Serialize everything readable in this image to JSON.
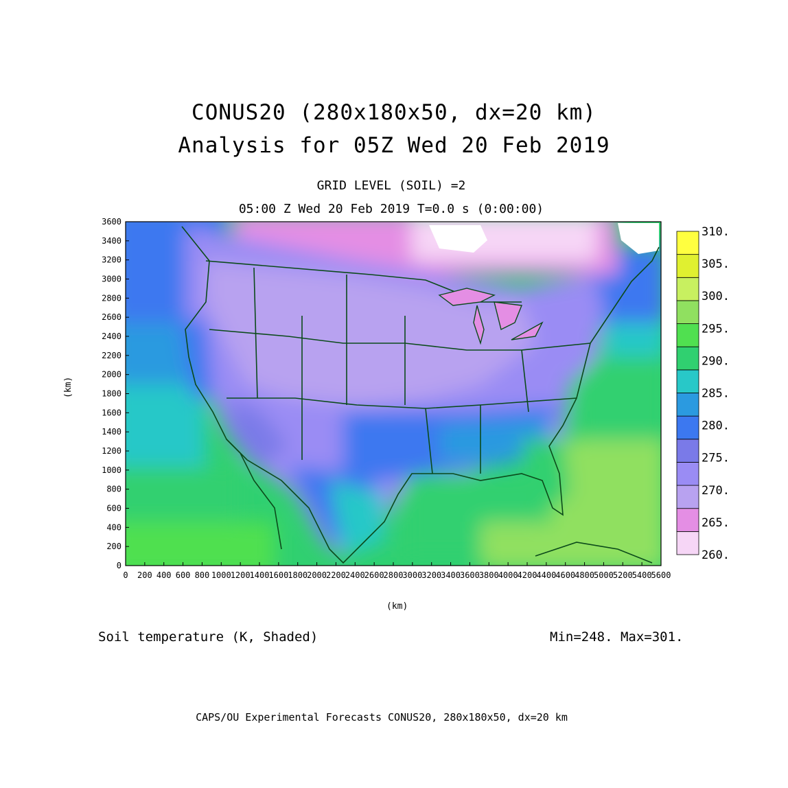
{
  "titles": {
    "line1": "CONUS20 (280x180x50, dx=20 km)",
    "line2": "Analysis for 05Z Wed 20 Feb 2019",
    "level": "GRID LEVEL (SOIL) =2",
    "time": "05:00 Z Wed 20 Feb 2019    T=0.0 s (0:00:00)"
  },
  "axes": {
    "x_label": "(km)",
    "y_label": "(km)",
    "x_ticks": [
      "0",
      "200",
      "400",
      "600",
      "800",
      "1000",
      "1200",
      "1400",
      "1600",
      "1800",
      "2000",
      "2200",
      "2400",
      "2600",
      "2800",
      "3000",
      "3200",
      "3400",
      "3600",
      "3800",
      "4000",
      "4200",
      "4400",
      "4600",
      "4800",
      "5000",
      "5200",
      "5400",
      "5600"
    ],
    "y_ticks": [
      "0",
      "200",
      "400",
      "600",
      "800",
      "1000",
      "1200",
      "1400",
      "1600",
      "1800",
      "2000",
      "2200",
      "2400",
      "2600",
      "2800",
      "3000",
      "3200",
      "3400",
      "3600"
    ],
    "x_range": [
      0,
      5600
    ],
    "y_range": [
      0,
      3600
    ]
  },
  "colorbar": {
    "labels": [
      "260.",
      "265.",
      "270.",
      "275.",
      "280.",
      "285.",
      "290.",
      "295.",
      "300.",
      "305.",
      "310."
    ],
    "colors": [
      "#f6d6f6",
      "#e48ee4",
      "#b8a2f0",
      "#9a8cf4",
      "#7a7ae8",
      "#3c78f0",
      "#2b9ae0",
      "#28c8c8",
      "#30d070",
      "#50e050",
      "#90e060",
      "#c8f060",
      "#e0f030",
      "#ffff40"
    ]
  },
  "footer": {
    "field": "Soil temperature (K, Shaded)",
    "minmax": "Min=248.  Max=301.",
    "credit": "CAPS/OU Experimental Forecasts  CONUS20, 280x180x50, dx=20 km"
  }
}
